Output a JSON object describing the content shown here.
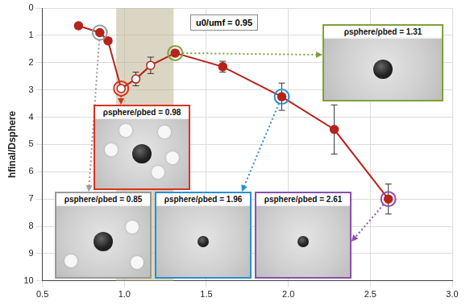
{
  "chart_data": {
    "type": "line",
    "y_label": "hfinal/Dsphere",
    "annotation": "u0/umf = 0.95",
    "x": [
      0.72,
      0.85,
      0.9,
      0.98,
      1.07,
      1.16,
      1.31,
      1.6,
      1.96,
      2.28,
      2.61
    ],
    "values": [
      0.65,
      0.9,
      1.2,
      2.95,
      2.6,
      2.1,
      1.65,
      2.15,
      3.25,
      4.45,
      7.0
    ],
    "errors": [
      null,
      null,
      null,
      null,
      0.25,
      0.3,
      null,
      0.2,
      0.5,
      0.9,
      0.55
    ],
    "color": "#b5231b",
    "colors": [
      "#b5231b",
      "#b5231b",
      "#b5231b",
      "#ffffff",
      "#ffffff",
      "#ffffff",
      "#b5231b",
      "#b5231b",
      "#b5231b",
      "#b5231b",
      "#b5231b"
    ],
    "marker": "circle",
    "shaded_region": [
      0.95,
      1.3
    ],
    "xlim": [
      0.5,
      3.0
    ],
    "xticks": [
      0.5,
      {
        "value": 1.0,
        "label": "1.0"
      },
      1.5,
      {
        "value": 2.0,
        "label": "2.0"
      },
      2.5,
      {
        "value": 3.0,
        "label": "3.0"
      }
    ],
    "ylim": [
      10,
      0
    ],
    "yticks": [
      0,
      1,
      2,
      3,
      4,
      5,
      6,
      7,
      8,
      9,
      10
    ],
    "grid": true,
    "insets": [
      {
        "text": "ρsphere/ρbed = 0.85",
        "x": 0.85,
        "y": 0.9,
        "color": "#9a9a9a"
      },
      {
        "text": "ρsphere/ρbed = 0.98",
        "x": 0.98,
        "y": 2.95,
        "color": "#d9331f"
      },
      {
        "text": "ρsphere/ρbed = 1.31",
        "x": 1.31,
        "y": 1.65,
        "color": "#7ea13a"
      },
      {
        "text": "ρsphere/ρbed = 1.96",
        "x": 1.96,
        "y": 3.25,
        "color": "#2a8fd0"
      },
      {
        "text": "ρsphere/ρbed = 2.61",
        "x": 2.61,
        "y": 7.0,
        "color": "#8a4fb0"
      }
    ]
  }
}
